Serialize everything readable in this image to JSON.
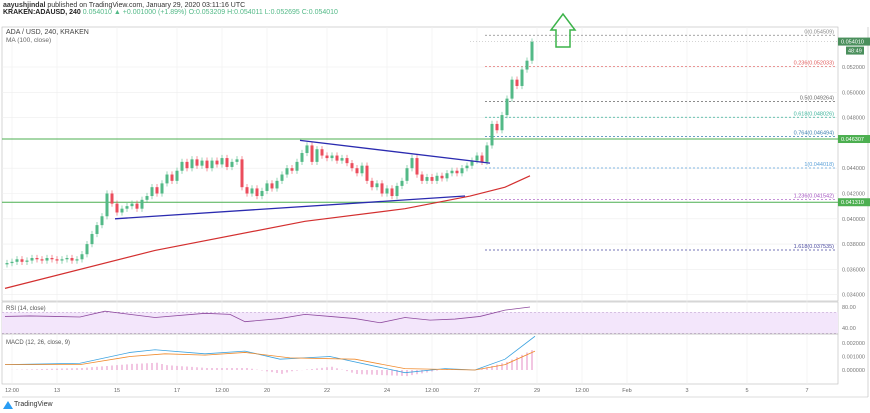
{
  "header": {
    "author": "aayushjindal",
    "published": "published on TradingView.com, January 29, 2020 03:11:16 UTC",
    "symbol": "KRAKEN:ADAUSD, 240",
    "last": "0.054010",
    "change": "▲ +0.001000 (+1.89%)",
    "o": "O:0.053209",
    "h": "H:0.054011",
    "l": "L:0.052695",
    "c": "C:0.054010"
  },
  "legend": {
    "title": "ADA / USD, 240, KRAKEN",
    "ma": "MA (100, close)"
  },
  "brand": "TradingView",
  "colors": {
    "up": "#53b987",
    "down": "#eb4d5c",
    "ma": "#d32f2f",
    "trend": "#2b2bb0",
    "level": "#4caf50",
    "arrow": "#3cb34a"
  },
  "chart_data": {
    "type": "candlestick",
    "timeframe": "240",
    "price_ticks": [
      "0.052000",
      "0.050000",
      "0.048000",
      "0.044000",
      "0.042000",
      "0.040000",
      "0.038000",
      "0.036000",
      "0.034000"
    ],
    "price_tick_values": [
      0.052,
      0.05,
      0.048,
      0.044,
      0.042,
      0.04,
      0.038,
      0.036,
      0.034
    ],
    "time_ticks": [
      "12:00",
      "13",
      "15",
      "17",
      "12:00",
      "20",
      "22",
      "24",
      "12:00",
      "27",
      "29",
      "12:00",
      "Feb",
      "3",
      "5",
      "7"
    ],
    "time_tick_index": [
      1,
      10,
      22,
      34,
      43,
      52,
      64,
      76,
      85,
      94,
      106,
      115,
      124,
      136,
      148,
      160
    ],
    "closes": [
      0.0365,
      0.0366,
      0.0368,
      0.0366,
      0.0367,
      0.0369,
      0.0368,
      0.0367,
      0.0369,
      0.0368,
      0.0367,
      0.0368,
      0.0369,
      0.0367,
      0.0368,
      0.0372,
      0.038,
      0.0388,
      0.0395,
      0.0402,
      0.042,
      0.0412,
      0.0405,
      0.0408,
      0.041,
      0.0412,
      0.0408,
      0.0415,
      0.0418,
      0.0425,
      0.042,
      0.0428,
      0.0435,
      0.043,
      0.0438,
      0.0445,
      0.044,
      0.0447,
      0.0442,
      0.0446,
      0.044,
      0.0446,
      0.0443,
      0.0448,
      0.0441,
      0.0445,
      0.0447,
      0.0425,
      0.042,
      0.0424,
      0.0418,
      0.0422,
      0.0428,
      0.0424,
      0.043,
      0.0435,
      0.044,
      0.0438,
      0.0445,
      0.0452,
      0.0458,
      0.0445,
      0.0455,
      0.045,
      0.0448,
      0.045,
      0.0446,
      0.0448,
      0.0444,
      0.044,
      0.0436,
      0.0442,
      0.043,
      0.0425,
      0.0428,
      0.042,
      0.0424,
      0.0418,
      0.0426,
      0.043,
      0.044,
      0.0448,
      0.0435,
      0.043,
      0.0433,
      0.043,
      0.0434,
      0.0432,
      0.0436,
      0.0438,
      0.0436,
      0.044,
      0.0442,
      0.0446,
      0.045,
      0.0445,
      0.0458,
      0.0475,
      0.047,
      0.0482,
      0.0495,
      0.051,
      0.0505,
      0.0518,
      0.0525,
      0.054
    ],
    "ma100": [
      [
        0,
        0.0345
      ],
      [
        30,
        0.0375
      ],
      [
        60,
        0.0398
      ],
      [
        80,
        0.0408
      ],
      [
        93,
        0.0418
      ],
      [
        100,
        0.0425
      ],
      [
        105,
        0.0434
      ]
    ],
    "levels": [
      {
        "price": 0.046307,
        "label": "0.046307"
      },
      {
        "price": 0.04131,
        "label": "0.041310"
      }
    ],
    "last_price_label": "0.054010",
    "countdown": "48:49",
    "trendlines": [
      {
        "from": [
          59,
          0.0462
        ],
        "to": [
          97,
          0.0444
        ]
      },
      {
        "from": [
          22,
          0.04
        ],
        "to": [
          92,
          0.0418
        ]
      }
    ],
    "fib": [
      {
        "label": "0(0.054509)",
        "price": 0.054509,
        "color": "#888"
      },
      {
        "label": "0.236(0.052033)",
        "price": 0.052033,
        "color": "#e05a5a"
      },
      {
        "label": "0.5(0.049264)",
        "price": 0.049264,
        "color": "#666"
      },
      {
        "label": "0.618(0.048026)",
        "price": 0.048026,
        "color": "#3bb39a"
      },
      {
        "label": "0.764(0.046494)",
        "price": 0.046494,
        "color": "#3a7fb0"
      },
      {
        "label": "1(0.044018)",
        "price": 0.044018,
        "color": "#5aa0d8"
      },
      {
        "label": "1.236(0.041542)",
        "price": 0.041542,
        "color": "#a24fc0"
      },
      {
        "label": "1.618(0.037535)",
        "price": 0.037535,
        "color": "#4a4aa0"
      }
    ],
    "rsi": {
      "label": "RSI (14, close)",
      "ticks": [
        "80.00",
        "40.00"
      ],
      "points": [
        [
          0,
          62
        ],
        [
          5,
          63
        ],
        [
          10,
          62
        ],
        [
          15,
          61
        ],
        [
          20,
          72
        ],
        [
          25,
          66
        ],
        [
          30,
          60
        ],
        [
          40,
          68
        ],
        [
          45,
          66
        ],
        [
          48,
          52
        ],
        [
          55,
          58
        ],
        [
          60,
          66
        ],
        [
          65,
          62
        ],
        [
          70,
          58
        ],
        [
          75,
          50
        ],
        [
          80,
          60
        ],
        [
          85,
          55
        ],
        [
          90,
          57
        ],
        [
          95,
          62
        ],
        [
          100,
          74
        ],
        [
          105,
          80
        ]
      ]
    },
    "macd": {
      "label": "MACD (12, 26, close, 9)",
      "ticks": [
        "0.002000",
        "0.001000",
        "0.000000"
      ],
      "macd": [
        [
          0,
          0.0004
        ],
        [
          15,
          0.0005
        ],
        [
          25,
          0.0013
        ],
        [
          30,
          0.0015
        ],
        [
          40,
          0.0012
        ],
        [
          48,
          0.0014
        ],
        [
          55,
          0.0008
        ],
        [
          65,
          0.001
        ],
        [
          75,
          0.0002
        ],
        [
          80,
          -0.0002
        ],
        [
          88,
          0.0001
        ],
        [
          94,
          0.0
        ],
        [
          100,
          0.0008
        ],
        [
          106,
          0.0025
        ]
      ],
      "signal": [
        [
          0,
          0.0004
        ],
        [
          15,
          0.0004
        ],
        [
          25,
          0.001
        ],
        [
          32,
          0.0012
        ],
        [
          40,
          0.0011
        ],
        [
          48,
          0.0013
        ],
        [
          57,
          0.0009
        ],
        [
          70,
          0.0008
        ],
        [
          80,
          0.0001
        ],
        [
          94,
          0.0
        ],
        [
          100,
          0.0004
        ],
        [
          106,
          0.0014
        ]
      ]
    }
  }
}
